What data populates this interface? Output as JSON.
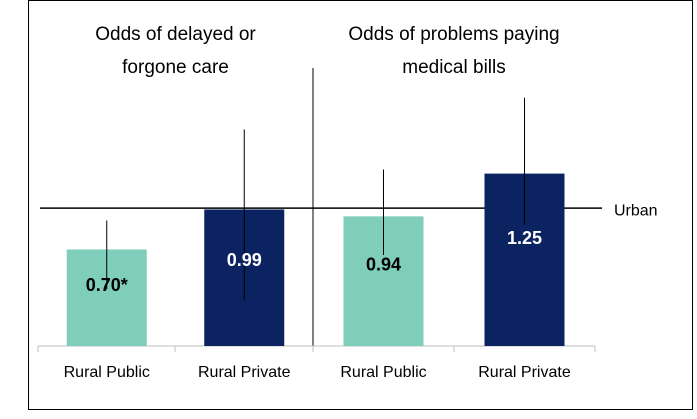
{
  "chart_data": [
    {
      "type": "bar",
      "title": [
        "Odds of delayed or",
        "forgone care"
      ],
      "categories": [
        "Rural Public",
        "Rural Private"
      ],
      "values": [
        0.7,
        0.99
      ],
      "value_labels": [
        "0.70*",
        "0.99"
      ],
      "colors": [
        "#7fcdbb",
        "#0b2361"
      ],
      "label_colors": [
        "#000000",
        "#ffffff"
      ],
      "error_low": [
        0.41,
        0.33
      ],
      "error_high": [
        0.91,
        1.57
      ],
      "ylim": [
        0,
        2.4
      ],
      "reference": {
        "value": 1,
        "label": "Urban"
      }
    },
    {
      "type": "bar",
      "title": [
        "Odds of problems paying",
        "medical bills"
      ],
      "categories": [
        "Rural Public",
        "Rural Private"
      ],
      "values": [
        0.94,
        1.25
      ],
      "value_labels": [
        "0.94",
        "1.25"
      ],
      "colors": [
        "#7fcdbb",
        "#0b2361"
      ],
      "label_colors": [
        "#000000",
        "#ffffff"
      ],
      "error_low": [
        0.66,
        0.88
      ],
      "error_high": [
        1.28,
        1.8
      ],
      "ylim": [
        0,
        2.4
      ]
    }
  ]
}
